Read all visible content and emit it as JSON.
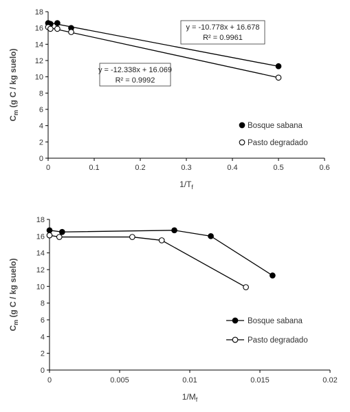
{
  "chart_data": [
    {
      "type": "scatter",
      "xlabel_main": "1/T",
      "xlabel_sub": "f",
      "ylabel_main": "C",
      "ylabel_sub": "m",
      "ylabel_rest": " (g C / kg suelo)",
      "xlim": [
        0,
        0.6
      ],
      "ylim": [
        0,
        18
      ],
      "xticks": [
        "0",
        "0.1",
        "0.2",
        "0.3",
        "0.4",
        "0.5",
        "0.6"
      ],
      "yticks": [
        "0",
        "2",
        "4",
        "6",
        "8",
        "10",
        "12",
        "14",
        "16",
        "18"
      ],
      "legend_position": "bottom-right",
      "series": [
        {
          "name": "Bosque sabana",
          "marker": "filled-circle",
          "x": [
            0.0,
            0.005,
            0.02,
            0.05,
            0.5
          ],
          "y": [
            16.6,
            16.5,
            16.6,
            16.0,
            11.3
          ],
          "trendline": {
            "slope": -10.778,
            "intercept": 16.678
          },
          "equation": "y = -10.778x + 16.678",
          "r2": "R² = 0.9961"
        },
        {
          "name": "Pasto degradado",
          "marker": "open-circle",
          "x": [
            0.0,
            0.005,
            0.02,
            0.05,
            0.5
          ],
          "y": [
            16.1,
            15.9,
            15.9,
            15.5,
            9.9
          ],
          "trendline": {
            "slope": -12.338,
            "intercept": 16.069
          },
          "equation": "y = -12.338x + 16.069",
          "r2": "R² = 0.9992"
        }
      ]
    },
    {
      "type": "line",
      "xlabel_main": "1/M",
      "xlabel_sub": "f",
      "ylabel_main": "C",
      "ylabel_sub": "m",
      "ylabel_rest": " (g C / kg suelo)",
      "xlim": [
        0,
        0.02
      ],
      "ylim": [
        0,
        18
      ],
      "xticks": [
        "0",
        "0.005",
        "0.01",
        "0.015",
        "0.02"
      ],
      "yticks": [
        "0",
        "2",
        "4",
        "6",
        "8",
        "10",
        "12",
        "14",
        "16",
        "18"
      ],
      "legend_position": "bottom-right",
      "series": [
        {
          "name": "Bosque sabana",
          "marker": "filled-circle",
          "x": [
            0.0,
            0.0009,
            0.0089,
            0.0115,
            0.0159
          ],
          "y": [
            16.7,
            16.5,
            16.7,
            16.0,
            11.3
          ]
        },
        {
          "name": "Pasto degradado",
          "marker": "open-circle",
          "x": [
            0.0,
            0.0007,
            0.0059,
            0.008,
            0.014
          ],
          "y": [
            16.1,
            15.9,
            15.9,
            15.5,
            9.9
          ]
        }
      ]
    }
  ]
}
